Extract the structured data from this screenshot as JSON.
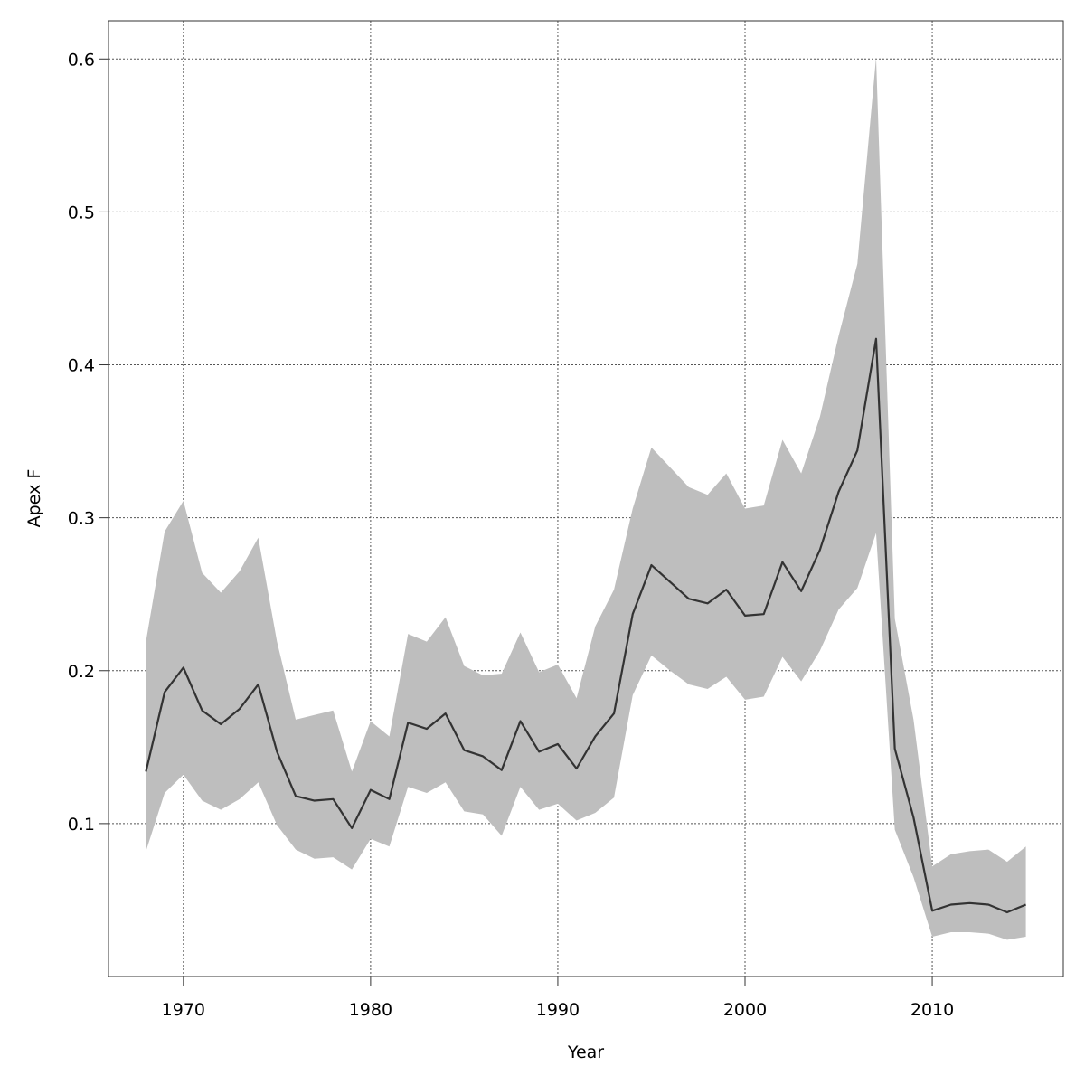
{
  "chart_data": {
    "type": "line",
    "title": "",
    "xlabel": "Year",
    "ylabel": "Apex F",
    "xlim": [
      1966,
      2017
    ],
    "ylim": [
      0,
      0.625
    ],
    "x_ticks": [
      1970,
      1980,
      1990,
      2000,
      2010
    ],
    "y_ticks": [
      0.1,
      0.2,
      0.3,
      0.4,
      0.5,
      0.6
    ],
    "grid": true,
    "legend": "none",
    "colors": {
      "line": "#333333",
      "band": "#bebebe",
      "grid": "#555555"
    },
    "x": [
      1968,
      1969,
      1970,
      1971,
      1972,
      1973,
      1974,
      1975,
      1976,
      1977,
      1978,
      1979,
      1980,
      1981,
      1982,
      1983,
      1984,
      1985,
      1986,
      1987,
      1988,
      1989,
      1990,
      1991,
      1992,
      1993,
      1994,
      1995,
      1996,
      1997,
      1998,
      1999,
      2000,
      2001,
      2002,
      2003,
      2004,
      2005,
      2006,
      2007,
      2008,
      2009,
      2010,
      2011,
      2012,
      2013,
      2014,
      2015
    ],
    "series": [
      {
        "values": [
          0.134,
          0.186,
          0.202,
          0.174,
          0.165,
          0.175,
          0.191,
          0.147,
          0.118,
          0.115,
          0.116,
          0.097,
          0.122,
          0.116,
          0.166,
          0.162,
          0.172,
          0.148,
          0.144,
          0.135,
          0.167,
          0.147,
          0.152,
          0.136,
          0.157,
          0.172,
          0.237,
          0.269,
          0.258,
          0.247,
          0.244,
          0.253,
          0.236,
          0.237,
          0.271,
          0.252,
          0.279,
          0.317,
          0.344,
          0.417,
          0.149,
          0.104,
          0.043,
          0.047,
          0.048,
          0.047,
          0.042,
          0.047
        ],
        "lower": [
          0.082,
          0.12,
          0.132,
          0.115,
          0.109,
          0.116,
          0.127,
          0.099,
          0.083,
          0.077,
          0.078,
          0.07,
          0.09,
          0.085,
          0.124,
          0.12,
          0.127,
          0.108,
          0.106,
          0.092,
          0.124,
          0.109,
          0.113,
          0.102,
          0.107,
          0.117,
          0.184,
          0.21,
          0.2,
          0.191,
          0.188,
          0.196,
          0.181,
          0.183,
          0.209,
          0.193,
          0.213,
          0.24,
          0.254,
          0.29,
          0.096,
          0.065,
          0.026,
          0.029,
          0.029,
          0.028,
          0.024,
          0.026
        ],
        "upper": [
          0.219,
          0.291,
          0.311,
          0.264,
          0.251,
          0.265,
          0.287,
          0.219,
          0.168,
          0.171,
          0.174,
          0.134,
          0.167,
          0.157,
          0.224,
          0.219,
          0.235,
          0.203,
          0.197,
          0.198,
          0.225,
          0.199,
          0.204,
          0.182,
          0.229,
          0.253,
          0.306,
          0.346,
          0.333,
          0.32,
          0.315,
          0.329,
          0.306,
          0.308,
          0.351,
          0.329,
          0.366,
          0.419,
          0.466,
          0.601,
          0.234,
          0.168,
          0.072,
          0.08,
          0.082,
          0.083,
          0.075,
          0.085
        ]
      }
    ]
  }
}
